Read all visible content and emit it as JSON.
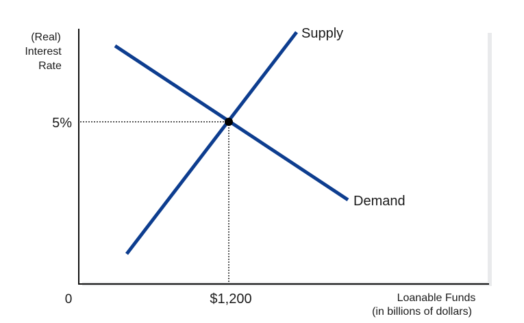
{
  "chart_data": {
    "type": "line",
    "ylabel_lines": [
      "(Real)",
      "Interest",
      "Rate"
    ],
    "xlabel_lines": [
      "Loanable Funds",
      "(in billions of dollars)"
    ],
    "origin_label": "0",
    "y_tick_label": "5%",
    "x_tick_label": "$1,200",
    "series": [
      {
        "name": "Supply",
        "color": "#0d3d8f"
      },
      {
        "name": "Demand",
        "color": "#0d3d8f"
      }
    ],
    "equilibrium": {
      "interest_rate": "5%",
      "quantity": "$1,200"
    },
    "grid": false,
    "legend": "inline labels at line ends"
  }
}
